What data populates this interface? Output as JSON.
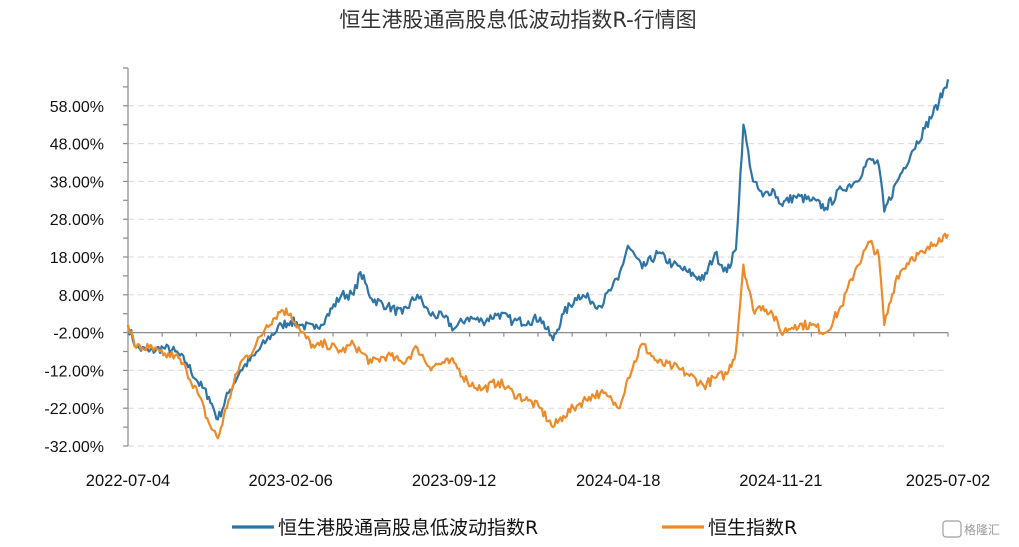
{
  "chart_data": {
    "type": "line",
    "title": "恒生港股通高股息低波动指数R-行情图",
    "y_unit": "%",
    "ylim": [
      -32,
      68
    ],
    "y_ticks": [
      "58.00%",
      "48.00%",
      "38.00%",
      "28.00%",
      "18.00%",
      "8.00%",
      "-2.00%",
      "-12.00%",
      "-22.00%",
      "-32.00%"
    ],
    "y_tick_values": [
      58,
      48,
      38,
      28,
      18,
      8,
      -2,
      -12,
      -22,
      -32
    ],
    "x_ticks": [
      "2022-07-04",
      "2023-02-06",
      "2023-09-12",
      "2024-04-18",
      "2024-11-21",
      "2025-07-02"
    ],
    "xlim": [
      "2022-07-04",
      "2025-07-02"
    ],
    "grid": true,
    "legend_position": "bottom",
    "series": [
      {
        "name": "恒生港股通高股息低波动指数R",
        "color": "#2e75a6",
        "points": [
          [
            "2022-07-04",
            0
          ],
          [
            "2022-07-15",
            -6
          ],
          [
            "2022-08-01",
            -7
          ],
          [
            "2022-08-20",
            -6
          ],
          [
            "2022-09-05",
            -7
          ],
          [
            "2022-09-20",
            -10
          ],
          [
            "2022-10-05",
            -15
          ],
          [
            "2022-10-20",
            -19
          ],
          [
            "2022-11-01",
            -25
          ],
          [
            "2022-11-15",
            -18
          ],
          [
            "2022-12-01",
            -12
          ],
          [
            "2022-12-20",
            -8
          ],
          [
            "2023-01-05",
            -4
          ],
          [
            "2023-01-25",
            0
          ],
          [
            "2023-02-06",
            1
          ],
          [
            "2023-02-20",
            0
          ],
          [
            "2023-03-10",
            -1
          ],
          [
            "2023-03-25",
            2
          ],
          [
            "2023-04-15",
            8
          ],
          [
            "2023-05-01",
            8
          ],
          [
            "2023-05-10",
            14
          ],
          [
            "2023-05-25",
            7
          ],
          [
            "2023-06-15",
            5
          ],
          [
            "2023-07-05",
            3
          ],
          [
            "2023-07-25",
            8
          ],
          [
            "2023-08-10",
            3
          ],
          [
            "2023-08-30",
            2
          ],
          [
            "2023-09-12",
            -1
          ],
          [
            "2023-09-30",
            2
          ],
          [
            "2023-10-20",
            1
          ],
          [
            "2023-11-10",
            3
          ],
          [
            "2023-11-30",
            1
          ],
          [
            "2023-12-20",
            1
          ],
          [
            "2024-01-05",
            2
          ],
          [
            "2024-01-22",
            -4
          ],
          [
            "2024-02-05",
            3
          ],
          [
            "2024-02-25",
            8
          ],
          [
            "2024-03-10",
            7
          ],
          [
            "2024-03-25",
            5
          ],
          [
            "2024-04-10",
            10
          ],
          [
            "2024-04-18",
            12
          ],
          [
            "2024-05-01",
            21
          ],
          [
            "2024-05-20",
            15
          ],
          [
            "2024-06-10",
            19
          ],
          [
            "2024-06-30",
            16
          ],
          [
            "2024-07-20",
            14
          ],
          [
            "2024-08-10",
            12
          ],
          [
            "2024-08-25",
            19
          ],
          [
            "2024-09-10",
            14
          ],
          [
            "2024-09-22",
            20
          ],
          [
            "2024-10-02",
            53
          ],
          [
            "2024-10-15",
            38
          ],
          [
            "2024-10-28",
            34
          ],
          [
            "2024-11-10",
            36
          ],
          [
            "2024-11-21",
            32
          ],
          [
            "2024-12-10",
            34
          ],
          [
            "2025-01-01",
            33
          ],
          [
            "2025-01-20",
            31
          ],
          [
            "2025-02-10",
            36
          ],
          [
            "2025-03-01",
            38
          ],
          [
            "2025-03-20",
            44
          ],
          [
            "2025-04-01",
            42
          ],
          [
            "2025-04-08",
            30
          ],
          [
            "2025-04-25",
            38
          ],
          [
            "2025-05-15",
            46
          ],
          [
            "2025-06-01",
            52
          ],
          [
            "2025-06-20",
            59
          ],
          [
            "2025-07-02",
            65
          ]
        ]
      },
      {
        "name": "恒生指数R",
        "color": "#ed8b2b",
        "points": [
          [
            "2022-07-04",
            0
          ],
          [
            "2022-07-15",
            -6
          ],
          [
            "2022-08-01",
            -6
          ],
          [
            "2022-08-20",
            -8
          ],
          [
            "2022-09-05",
            -8
          ],
          [
            "2022-09-20",
            -12
          ],
          [
            "2022-10-05",
            -18
          ],
          [
            "2022-10-20",
            -26
          ],
          [
            "2022-11-01",
            -30
          ],
          [
            "2022-11-15",
            -20
          ],
          [
            "2022-12-01",
            -10
          ],
          [
            "2022-12-20",
            -6
          ],
          [
            "2023-01-05",
            0
          ],
          [
            "2023-01-25",
            4
          ],
          [
            "2023-02-06",
            3
          ],
          [
            "2023-02-20",
            -2
          ],
          [
            "2023-03-10",
            -6
          ],
          [
            "2023-03-25",
            -5
          ],
          [
            "2023-04-15",
            -7
          ],
          [
            "2023-05-01",
            -5
          ],
          [
            "2023-05-10",
            -7
          ],
          [
            "2023-05-25",
            -10
          ],
          [
            "2023-06-15",
            -8
          ],
          [
            "2023-07-05",
            -10
          ],
          [
            "2023-07-25",
            -6
          ],
          [
            "2023-08-10",
            -11
          ],
          [
            "2023-08-30",
            -10
          ],
          [
            "2023-09-12",
            -10
          ],
          [
            "2023-09-30",
            -15
          ],
          [
            "2023-10-20",
            -17
          ],
          [
            "2023-11-10",
            -15
          ],
          [
            "2023-11-30",
            -18
          ],
          [
            "2023-12-20",
            -20
          ],
          [
            "2024-01-05",
            -22
          ],
          [
            "2024-01-22",
            -27
          ],
          [
            "2024-02-05",
            -24
          ],
          [
            "2024-02-25",
            -21
          ],
          [
            "2024-03-10",
            -19
          ],
          [
            "2024-03-25",
            -18
          ],
          [
            "2024-04-10",
            -20
          ],
          [
            "2024-04-18",
            -22
          ],
          [
            "2024-05-01",
            -14
          ],
          [
            "2024-05-20",
            -5
          ],
          [
            "2024-06-10",
            -10
          ],
          [
            "2024-06-30",
            -11
          ],
          [
            "2024-07-20",
            -13
          ],
          [
            "2024-08-10",
            -16
          ],
          [
            "2024-08-25",
            -14
          ],
          [
            "2024-09-10",
            -13
          ],
          [
            "2024-09-22",
            -7
          ],
          [
            "2024-10-02",
            16
          ],
          [
            "2024-10-15",
            4
          ],
          [
            "2024-10-28",
            5
          ],
          [
            "2024-11-10",
            3
          ],
          [
            "2024-11-21",
            -2
          ],
          [
            "2024-12-10",
            0
          ],
          [
            "2025-01-01",
            0
          ],
          [
            "2025-01-20",
            -2
          ],
          [
            "2025-02-10",
            5
          ],
          [
            "2025-03-01",
            15
          ],
          [
            "2025-03-20",
            22
          ],
          [
            "2025-04-01",
            18
          ],
          [
            "2025-04-08",
            0
          ],
          [
            "2025-04-25",
            13
          ],
          [
            "2025-05-15",
            18
          ],
          [
            "2025-06-01",
            19
          ],
          [
            "2025-06-20",
            23
          ],
          [
            "2025-07-02",
            24
          ]
        ]
      }
    ]
  },
  "watermark": "格隆汇"
}
